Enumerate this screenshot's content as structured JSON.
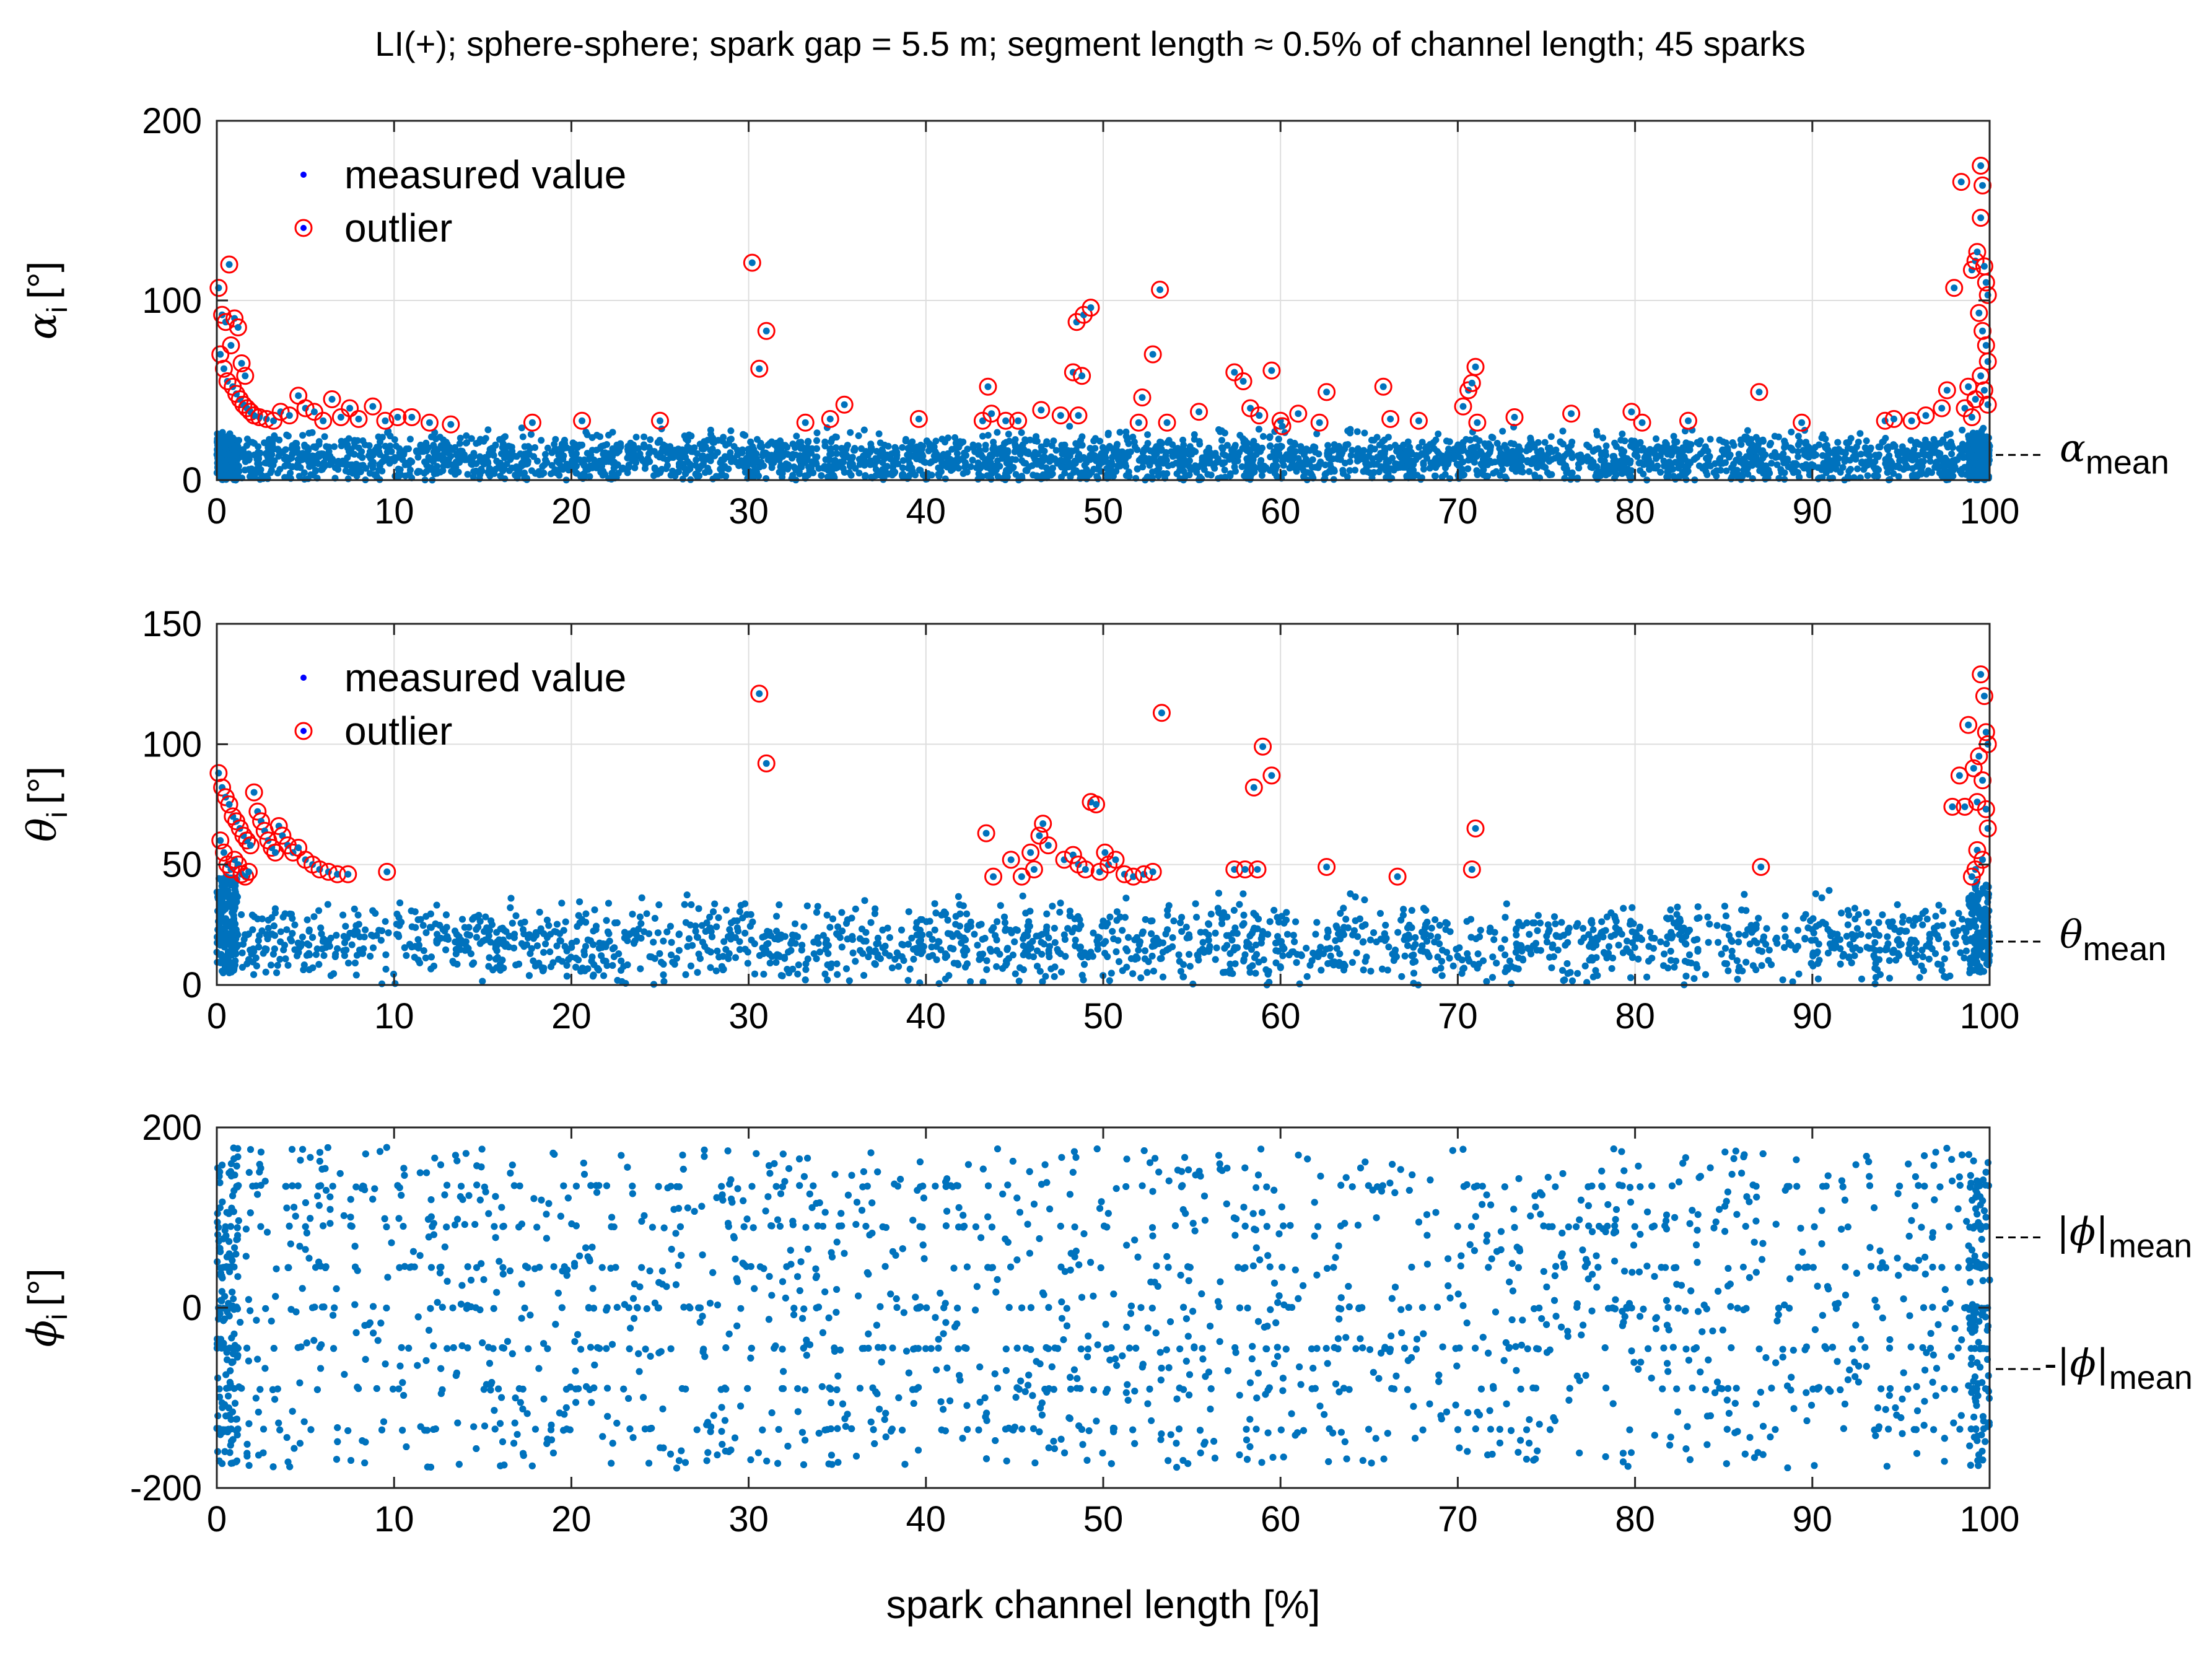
{
  "title": "LI(+); sphere-sphere; spark gap = 5.5 m; segment length ≈ 0.5% of channel length; 45 sparks",
  "chart_data": [
    {
      "id": "alpha",
      "type": "scatter",
      "title": "LI(+); sphere-sphere; spark gap = 5.5 m; segment length ≈ 0.5% of channel length; 45 sparks",
      "ylabel_symbol": "α",
      "ylabel_sub": "i",
      "ylabel_unit": "[°]",
      "xlim": [
        0,
        100
      ],
      "ylim": [
        0,
        200
      ],
      "xticks": [
        0,
        10,
        20,
        30,
        40,
        50,
        60,
        70,
        80,
        90,
        100
      ],
      "yticks": [
        0,
        100,
        200
      ],
      "grid": true,
      "legend": {
        "placement": "top-left",
        "entries": [
          "measured value",
          "outlier"
        ]
      },
      "mean_marker": {
        "symbol": "α",
        "sub": "mean",
        "value": 14
      },
      "measured_band": {
        "min": 0,
        "max": 30,
        "center": 12
      },
      "outliers": [
        [
          0.1,
          107
        ],
        [
          0.3,
          92
        ],
        [
          0.5,
          88
        ],
        [
          0.7,
          120
        ],
        [
          0.8,
          75
        ],
        [
          1.0,
          90
        ],
        [
          1.2,
          85
        ],
        [
          1.4,
          65
        ],
        [
          1.6,
          58
        ],
        [
          0.2,
          70
        ],
        [
          0.4,
          62
        ],
        [
          0.6,
          55
        ],
        [
          0.9,
          52
        ],
        [
          1.1,
          48
        ],
        [
          1.3,
          45
        ],
        [
          1.5,
          42
        ],
        [
          1.7,
          40
        ],
        [
          1.9,
          38
        ],
        [
          2.1,
          36
        ],
        [
          2.4,
          35
        ],
        [
          2.8,
          34
        ],
        [
          3.2,
          33
        ],
        [
          3.6,
          38
        ],
        [
          4.1,
          36
        ],
        [
          4.6,
          47
        ],
        [
          5.0,
          40
        ],
        [
          5.5,
          38
        ],
        [
          6.0,
          33
        ],
        [
          6.5,
          45
        ],
        [
          7.0,
          35
        ],
        [
          7.5,
          40
        ],
        [
          8.0,
          34
        ],
        [
          8.8,
          41
        ],
        [
          9.5,
          33
        ],
        [
          10.2,
          35
        ],
        [
          11.0,
          35
        ],
        [
          12.0,
          32
        ],
        [
          13.2,
          31
        ],
        [
          17.8,
          32
        ],
        [
          20.6,
          33
        ],
        [
          25.0,
          33
        ],
        [
          30.2,
          121
        ],
        [
          30.6,
          62
        ],
        [
          31.0,
          83
        ],
        [
          33.2,
          32
        ],
        [
          34.6,
          34
        ],
        [
          35.4,
          42
        ],
        [
          39.6,
          34
        ],
        [
          43.2,
          33
        ],
        [
          43.5,
          52
        ],
        [
          43.7,
          37
        ],
        [
          44.5,
          33
        ],
        [
          45.2,
          33
        ],
        [
          46.5,
          39
        ],
        [
          47.6,
          36
        ],
        [
          48.3,
          60
        ],
        [
          48.5,
          88
        ],
        [
          48.8,
          58
        ],
        [
          48.9,
          92
        ],
        [
          49.3,
          96
        ],
        [
          48.6,
          36
        ],
        [
          52.0,
          32
        ],
        [
          52.2,
          46
        ],
        [
          52.8,
          70
        ],
        [
          53.2,
          106
        ],
        [
          53.6,
          32
        ],
        [
          55.4,
          38
        ],
        [
          57.4,
          60
        ],
        [
          57.9,
          55
        ],
        [
          58.3,
          40
        ],
        [
          58.8,
          36
        ],
        [
          59.5,
          61
        ],
        [
          60.0,
          33
        ],
        [
          60.1,
          30
        ],
        [
          61.0,
          37
        ],
        [
          62.2,
          32
        ],
        [
          62.6,
          49
        ],
        [
          65.8,
          52
        ],
        [
          66.2,
          34
        ],
        [
          67.8,
          33
        ],
        [
          70.3,
          41
        ],
        [
          70.6,
          50
        ],
        [
          70.8,
          54
        ],
        [
          71.0,
          63
        ],
        [
          71.1,
          32
        ],
        [
          73.2,
          35
        ],
        [
          76.4,
          37
        ],
        [
          79.8,
          38
        ],
        [
          80.4,
          32
        ],
        [
          83.0,
          33
        ],
        [
          87.0,
          49
        ],
        [
          89.4,
          32
        ],
        [
          94.1,
          33
        ],
        [
          94.6,
          34
        ],
        [
          95.6,
          33
        ],
        [
          96.4,
          36
        ],
        [
          97.3,
          40
        ],
        [
          97.6,
          50
        ],
        [
          98.0,
          107
        ],
        [
          98.4,
          166
        ],
        [
          98.8,
          52
        ],
        [
          99.0,
          117
        ],
        [
          99.2,
          122
        ],
        [
          99.3,
          127
        ],
        [
          99.5,
          175
        ],
        [
          99.6,
          164
        ],
        [
          99.5,
          146
        ],
        [
          99.7,
          119
        ],
        [
          99.8,
          110
        ],
        [
          99.9,
          103
        ],
        [
          99.4,
          93
        ],
        [
          99.6,
          83
        ],
        [
          99.8,
          75
        ],
        [
          99.9,
          66
        ],
        [
          99.5,
          58
        ],
        [
          99.7,
          50
        ],
        [
          99.2,
          45
        ],
        [
          98.6,
          40
        ],
        [
          99.0,
          35
        ],
        [
          99.9,
          42
        ]
      ]
    },
    {
      "id": "theta",
      "type": "scatter",
      "ylabel_symbol": "θ",
      "ylabel_sub": "i",
      "ylabel_unit": "[°]",
      "xlim": [
        0,
        100
      ],
      "ylim": [
        0,
        150
      ],
      "xticks": [
        0,
        10,
        20,
        30,
        40,
        50,
        60,
        70,
        80,
        90,
        100
      ],
      "yticks": [
        0,
        50,
        100,
        150
      ],
      "grid": true,
      "legend": {
        "placement": "top-left",
        "entries": [
          "measured value",
          "outlier"
        ]
      },
      "mean_marker": {
        "symbol": "θ",
        "sub": "mean",
        "value": 18
      },
      "measured_band": {
        "min": 0,
        "max": 40,
        "center": 18
      },
      "outliers": [
        [
          0.1,
          88
        ],
        [
          0.3,
          82
        ],
        [
          0.5,
          78
        ],
        [
          0.7,
          75
        ],
        [
          0.9,
          70
        ],
        [
          1.1,
          68
        ],
        [
          1.3,
          65
        ],
        [
          1.5,
          62
        ],
        [
          1.7,
          60
        ],
        [
          1.9,
          58
        ],
        [
          2.1,
          80
        ],
        [
          2.3,
          72
        ],
        [
          2.5,
          68
        ],
        [
          2.7,
          64
        ],
        [
          2.9,
          60
        ],
        [
          3.1,
          57
        ],
        [
          3.3,
          55
        ],
        [
          3.5,
          66
        ],
        [
          3.7,
          62
        ],
        [
          4.0,
          58
        ],
        [
          4.3,
          55
        ],
        [
          4.6,
          57
        ],
        [
          5.0,
          52
        ],
        [
          5.4,
          50
        ],
        [
          5.8,
          48
        ],
        [
          6.3,
          47
        ],
        [
          6.8,
          46
        ],
        [
          7.4,
          46
        ],
        [
          9.6,
          47
        ],
        [
          0.2,
          60
        ],
        [
          0.4,
          55
        ],
        [
          0.6,
          50
        ],
        [
          0.8,
          48
        ],
        [
          1.0,
          52
        ],
        [
          1.2,
          50
        ],
        [
          1.4,
          46
        ],
        [
          1.6,
          45
        ],
        [
          1.8,
          47
        ],
        [
          30.6,
          121
        ],
        [
          31.0,
          92
        ],
        [
          43.4,
          63
        ],
        [
          43.8,
          45
        ],
        [
          44.8,
          52
        ],
        [
          45.4,
          45
        ],
        [
          45.9,
          55
        ],
        [
          46.1,
          48
        ],
        [
          46.4,
          62
        ],
        [
          46.6,
          67
        ],
        [
          46.9,
          58
        ],
        [
          47.8,
          52
        ],
        [
          48.3,
          54
        ],
        [
          48.6,
          50
        ],
        [
          49.0,
          48
        ],
        [
          49.3,
          76
        ],
        [
          49.6,
          75
        ],
        [
          49.8,
          47
        ],
        [
          50.1,
          55
        ],
        [
          50.3,
          50
        ],
        [
          50.7,
          52
        ],
        [
          51.2,
          46
        ],
        [
          51.7,
          45
        ],
        [
          52.3,
          46
        ],
        [
          52.8,
          47
        ],
        [
          53.3,
          113
        ],
        [
          57.4,
          48
        ],
        [
          58.0,
          48
        ],
        [
          58.5,
          82
        ],
        [
          58.7,
          48
        ],
        [
          59.0,
          99
        ],
        [
          59.5,
          87
        ],
        [
          62.6,
          49
        ],
        [
          66.6,
          45
        ],
        [
          70.8,
          48
        ],
        [
          71.0,
          65
        ],
        [
          87.1,
          49
        ],
        [
          97.9,
          74
        ],
        [
          98.3,
          87
        ],
        [
          98.6,
          74
        ],
        [
          98.8,
          108
        ],
        [
          99.1,
          90
        ],
        [
          99.3,
          76
        ],
        [
          99.5,
          129
        ],
        [
          99.7,
          120
        ],
        [
          99.8,
          105
        ],
        [
          99.9,
          100
        ],
        [
          99.4,
          95
        ],
        [
          99.6,
          85
        ],
        [
          99.8,
          73
        ],
        [
          99.9,
          65
        ],
        [
          99.3,
          56
        ],
        [
          99.6,
          52
        ],
        [
          99.2,
          48
        ],
        [
          99.0,
          45
        ]
      ]
    },
    {
      "id": "phi",
      "type": "scatter",
      "ylabel_symbol": "ϕ",
      "ylabel_sub": "i",
      "ylabel_unit": "[°]",
      "xlabel": "spark channel length [%]",
      "xlim": [
        0,
        100
      ],
      "ylim": [
        -200,
        200
      ],
      "xticks": [
        0,
        10,
        20,
        30,
        40,
        50,
        60,
        70,
        80,
        90,
        100
      ],
      "yticks": [
        -200,
        0,
        200
      ],
      "grid": false,
      "mean_markers": [
        {
          "prefix": "",
          "symbol": "|ϕ|",
          "sub": "mean",
          "value": 78
        },
        {
          "prefix": "-",
          "symbol": "|ϕ|",
          "sub": "mean",
          "value": -68
        }
      ],
      "measured_band": {
        "min": -180,
        "max": 180
      },
      "stripe_levels": [
        -135,
        -90,
        -45,
        0,
        45,
        90,
        135
      ]
    }
  ],
  "colors": {
    "measured": "#0072BD",
    "outlier": "#FF0000",
    "legend_dot": "#0000FF",
    "grid": "#DEDEDE",
    "axis": "#262626"
  }
}
